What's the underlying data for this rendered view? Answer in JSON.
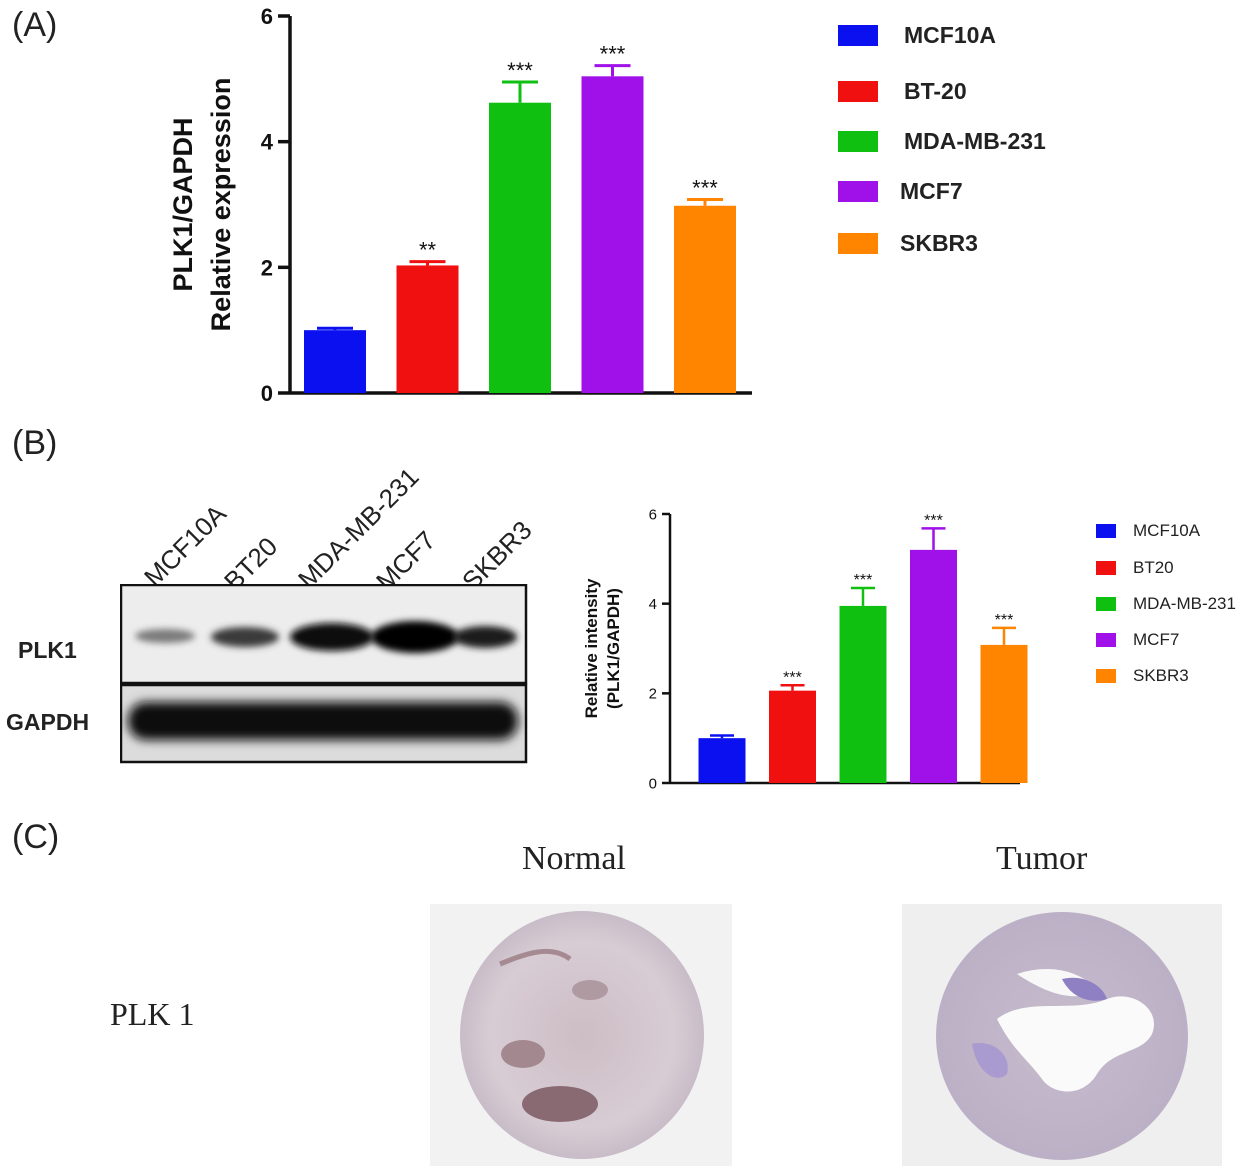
{
  "panels": {
    "a": "(A)",
    "b": "(B)",
    "c": "(C)"
  },
  "colors": {
    "MCF10A": "#0a10f0",
    "BT20": "#f01010",
    "MDA": "#10c010",
    "MCF7": "#a010e8",
    "SKBR3": "#ff8400"
  },
  "chart_data": [
    {
      "type": "bar",
      "title": "",
      "ylabel_line1": "PLK1/GAPDH",
      "ylabel_line2": "Relative expression",
      "categories": [
        "MCF10A",
        "BT-20",
        "MDA-MB-231",
        "MCF7",
        "SKBR3"
      ],
      "values": [
        1.0,
        2.03,
        4.62,
        5.04,
        2.98
      ],
      "errors": [
        0.03,
        0.06,
        0.33,
        0.17,
        0.1
      ],
      "significance": [
        "",
        "**",
        "***",
        "***",
        "***"
      ],
      "ylim": [
        0,
        6
      ],
      "yticks": [
        "0",
        "2",
        "4",
        "6"
      ],
      "legend": [
        "MCF10A",
        "BT-20",
        "MDA-MB-231",
        "MCF7",
        "SKBR3"
      ]
    },
    {
      "type": "bar",
      "title": "",
      "ylabel_line1": "Relative intensity",
      "ylabel_line2": "(PLK1/GAPDH)",
      "categories": [
        "MCF10A",
        "BT20",
        "MDA-MB-231",
        "MCF7",
        "SKBR3"
      ],
      "values": [
        1.0,
        2.06,
        3.95,
        5.2,
        3.08
      ],
      "errors": [
        0.06,
        0.12,
        0.4,
        0.48,
        0.38
      ],
      "significance": [
        "",
        "***",
        "***",
        "***",
        "***"
      ],
      "ylim": [
        0,
        6
      ],
      "yticks": [
        "0",
        "2",
        "4",
        "6"
      ],
      "legend": [
        "MCF10A",
        "BT20",
        "MDA-MB-231",
        "MCF7",
        "SKBR3"
      ]
    }
  ],
  "blot": {
    "lanes": [
      "MCF10A",
      "BT20",
      "MDA-MB-231",
      "MCF7",
      "SKBR3"
    ],
    "rows": [
      "PLK1",
      "GAPDH"
    ]
  },
  "ihc": {
    "col1": "Normal",
    "col2": "Tumor",
    "row": "PLK 1"
  }
}
